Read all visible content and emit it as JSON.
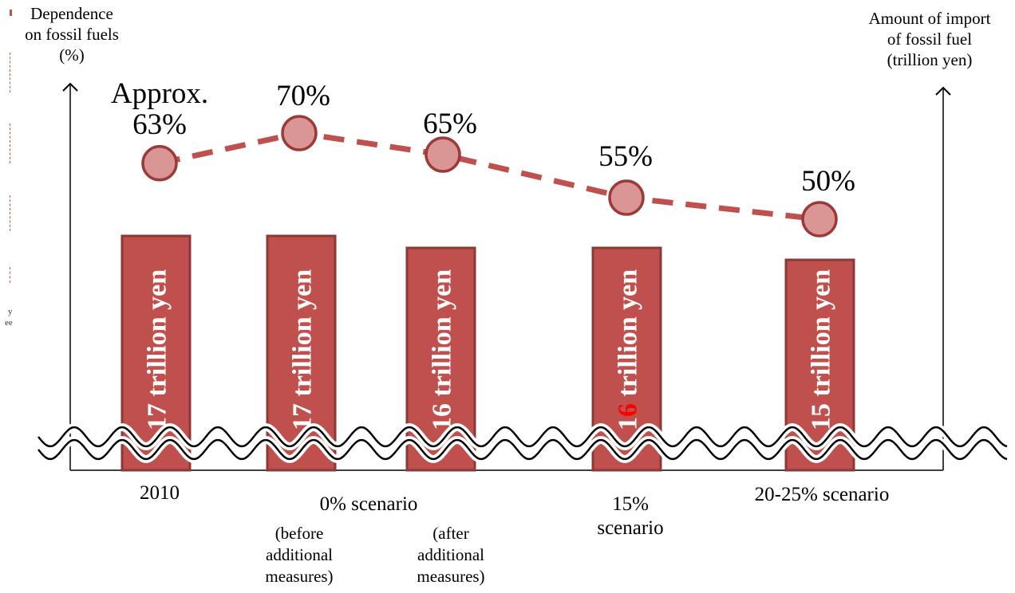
{
  "left_axis_title": [
    "Dependence",
    "on fossil fuels",
    "(%)"
  ],
  "right_axis_title": [
    "Amount of import",
    "of fossil fuel",
    "(trillion yen)"
  ],
  "edge_fragment": [
    "y",
    "ee"
  ],
  "chart_data": {
    "type": "bar",
    "bars": [
      {
        "label_num": "17",
        "label_rest": " trillion yen",
        "value": 17,
        "highlight": false
      },
      {
        "label_num": "17",
        "label_rest": " trillion yen",
        "value": 17,
        "highlight": false
      },
      {
        "label_num": "16",
        "label_rest": " trillion yen",
        "value": 16,
        "highlight": false
      },
      {
        "label_num": "16",
        "label_rest": " trillion yen",
        "value": 16,
        "highlight": true
      },
      {
        "label_num": "15",
        "label_rest": " trillion yen",
        "value": 15,
        "highlight": false
      }
    ],
    "line": {
      "values": [
        63,
        70,
        65,
        55,
        50
      ],
      "labels": [
        "Approx.\n63%",
        "70%",
        "65%",
        "55%",
        "50%"
      ]
    },
    "categories": [
      "2010",
      "0% scenario",
      "15%\nscenario",
      "20-25% scenario"
    ],
    "sub_categories": [
      "(before\nadditional\nmeasures)",
      "(after\nadditional\nmeasures)"
    ],
    "colors": {
      "bar_fill": "#c0504d",
      "bar_stroke": "#8c3836",
      "marker_fill": "#d99694",
      "marker_stroke": "#9b3a38",
      "line": "#c0504d",
      "highlight_text": "#ff0000"
    }
  }
}
